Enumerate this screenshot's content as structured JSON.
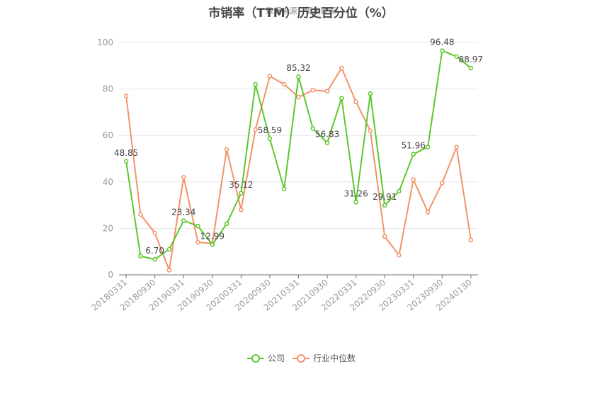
{
  "title": "市销率（TTM）历史百分位（%）",
  "source": "数据来源：恒生聚源",
  "chart_data": {
    "type": "line",
    "x": [
      "20180331",
      "20180630",
      "20180930",
      "20181231",
      "20190331",
      "20190630",
      "20190930",
      "20191231",
      "20200331",
      "20200630",
      "20200930",
      "20201231",
      "20210331",
      "20210630",
      "20210930",
      "20211231",
      "20220331",
      "20220630",
      "20220930",
      "20221231",
      "20230331",
      "20230630",
      "20230930",
      "20231231",
      "20240130"
    ],
    "x_tick_labels": [
      "20180331",
      "20180930",
      "20190331",
      "20190930",
      "20200331",
      "20200930",
      "20210331",
      "20210930",
      "20220331",
      "20220930",
      "20230331",
      "20230930",
      "20240130"
    ],
    "ylim": [
      0,
      100
    ],
    "y_ticks": [
      0,
      20,
      40,
      60,
      80,
      100
    ],
    "grid": true,
    "legend_position": "bottom-center",
    "series": [
      {
        "name": "公司",
        "color": "#5cc72d",
        "values": [
          48.85,
          8.0,
          6.7,
          11.0,
          23.34,
          21.0,
          12.99,
          22.0,
          35.12,
          82.0,
          58.59,
          37.0,
          85.32,
          63.0,
          56.83,
          76.0,
          31.26,
          78.0,
          29.91,
          36.0,
          51.96,
          55.0,
          96.48,
          94.0,
          88.97
        ],
        "labels": [
          "48.85",
          "",
          "6.70",
          "",
          "23.34",
          "",
          "12.99",
          "",
          "35.12",
          "",
          "58.59",
          "",
          "85.32",
          "",
          "56.83",
          "",
          "31.26",
          "",
          "29.91",
          "",
          "51.96",
          "",
          "96.48",
          "",
          "88.97"
        ]
      },
      {
        "name": "行业中位数",
        "color": "#f4926a",
        "values": [
          77.0,
          26.0,
          18.0,
          2.0,
          42.0,
          14.0,
          13.5,
          54.0,
          28.0,
          62.5,
          85.5,
          82.0,
          76.5,
          79.5,
          79.0,
          89.0,
          74.5,
          62.0,
          16.5,
          8.5,
          41.0,
          27.0,
          39.5,
          55.0,
          15.0
        ]
      }
    ]
  }
}
